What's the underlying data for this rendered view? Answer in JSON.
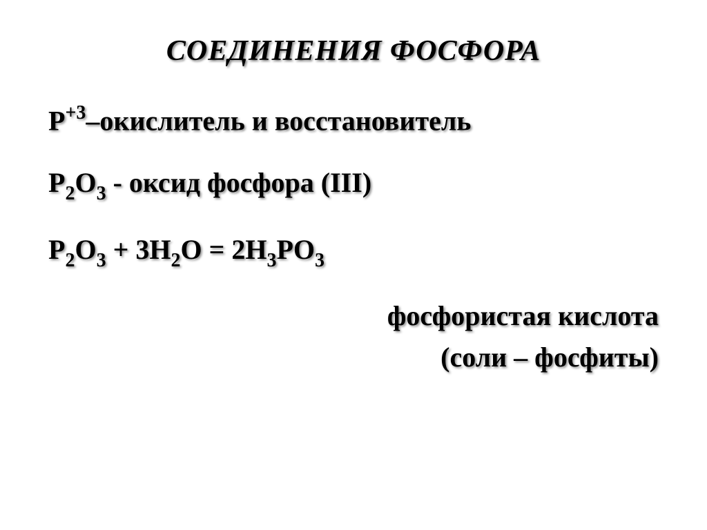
{
  "slide": {
    "title": "СОЕДИНЕНИЯ ФОСФОРА",
    "line1_pre": "P",
    "line1_sup": "+3",
    "line1_post": "–окислитель и восстановитель",
    "line2_f1": "P",
    "line2_s1": "2",
    "line2_f2": "O",
    "line2_s2": "3",
    "line2_post": "  - оксид фосфора (III)",
    "line3_f1": "P",
    "line3_s1": "2",
    "line3_f2": "O",
    "line3_s2": "3",
    "line3_f3": " + 3H",
    "line3_s3": "2",
    "line3_f4": "O = 2H",
    "line3_s4": "3",
    "line3_f5": "PO",
    "line3_s5": "3",
    "line4": "фосфористая кислота",
    "line5": "(соли – фосфиты)",
    "background_color": "#ffffff",
    "text_color": "#000000",
    "shadow_color": "#808080",
    "title_fontsize": 42,
    "body_fontsize": 40,
    "font_family": "Times New Roman"
  }
}
